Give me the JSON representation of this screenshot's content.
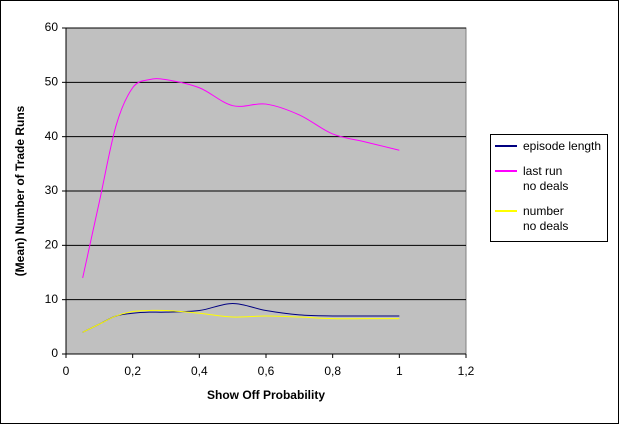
{
  "chart_data": {
    "type": "line",
    "x_label": "Show Off Probability",
    "y_label": "(Mean) Number of Trade Runs",
    "x": [
      0.05,
      0.1,
      0.15,
      0.2,
      0.25,
      0.3,
      0.4,
      0.5,
      0.6,
      0.7,
      0.8,
      0.9,
      1.0
    ],
    "series": [
      {
        "name": "episode length",
        "color": "#000080",
        "values": [
          4,
          5.5,
          7,
          7.5,
          7.7,
          7.7,
          8,
          9.3,
          8,
          7.2,
          7,
          7,
          7
        ]
      },
      {
        "name": "last run\nno deals",
        "color": "#ff00ff",
        "values": [
          14,
          28,
          42,
          49,
          50.5,
          50.5,
          49,
          45.7,
          46,
          44,
          40.5,
          39,
          37.5
        ]
      },
      {
        "name": "number\nno deals",
        "color": "#ffff00",
        "values": [
          4,
          5.5,
          7,
          7.8,
          8,
          8,
          7.5,
          6.8,
          7,
          6.8,
          6.5,
          6.5,
          6.5
        ]
      }
    ],
    "xlim": [
      0,
      1.2
    ],
    "xticks": [
      0,
      {
        "value": 0.2,
        "label": "0,2"
      },
      {
        "value": 0.4,
        "label": "0,4"
      },
      {
        "value": 0.6,
        "label": "0,6"
      },
      {
        "value": 0.8,
        "label": "0,8"
      },
      1,
      {
        "value": 1.2,
        "label": "1,2"
      }
    ],
    "ylim": [
      0,
      60
    ],
    "yticks": [
      0,
      10,
      20,
      30,
      40,
      50,
      60
    ],
    "grid": true,
    "plot_background": "#c0c0c0"
  }
}
